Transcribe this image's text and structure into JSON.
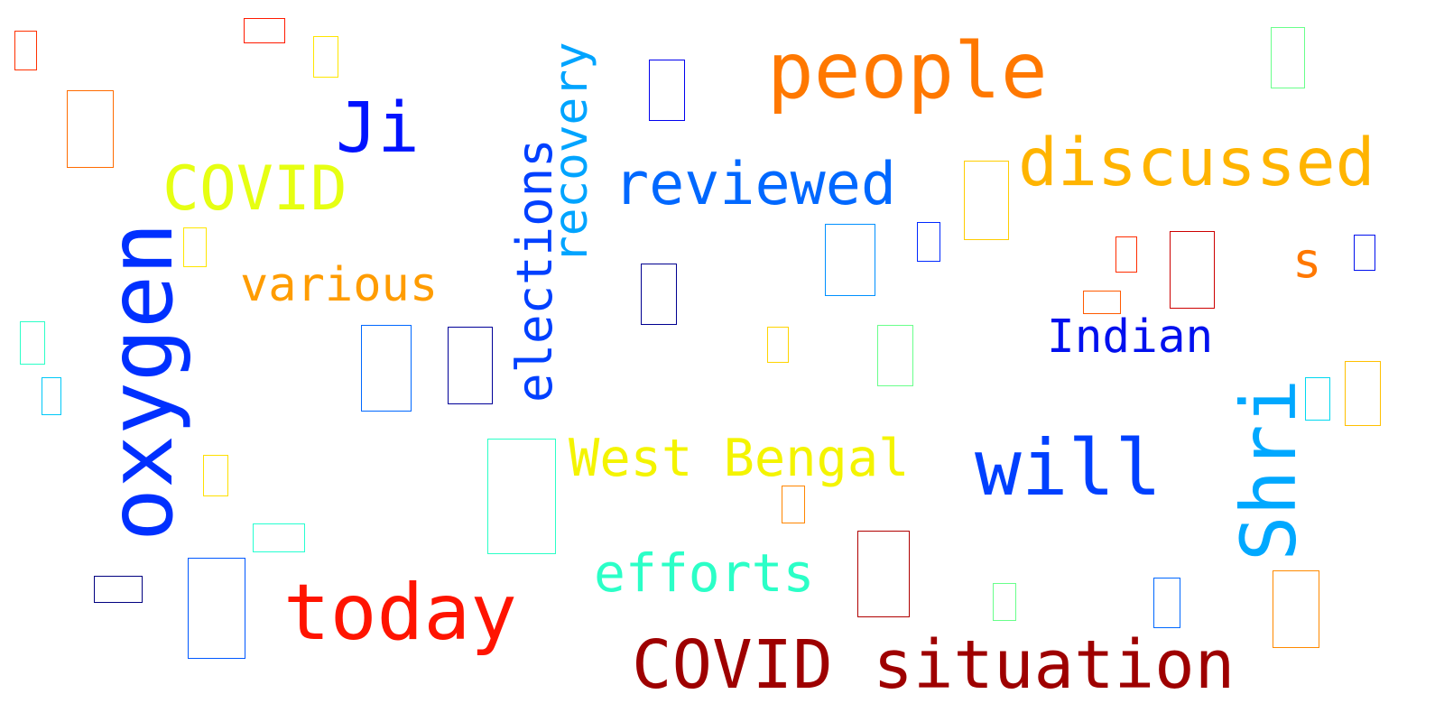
{
  "words": [
    {
      "text": "people",
      "color": "#ff7800"
    },
    {
      "text": "discussed",
      "color": "#ffb400"
    },
    {
      "text": "Ji",
      "color": "#0012ff"
    },
    {
      "text": "COVID",
      "color": "#e6ff12"
    },
    {
      "text": "reviewed",
      "color": "#0068ff"
    },
    {
      "text": "recovery",
      "color": "#00a4ff"
    },
    {
      "text": "elections",
      "color": "#0040ff"
    },
    {
      "text": "oxygen",
      "color": "#0030ff"
    },
    {
      "text": "various",
      "color": "#ff9c00"
    },
    {
      "text": "s",
      "color": "#ff7800"
    },
    {
      "text": "Indian",
      "color": "#0010ee"
    },
    {
      "text": "Shri",
      "color": "#00a8ff"
    },
    {
      "text": "West Bengal",
      "color": "#f4f400"
    },
    {
      "text": "will",
      "color": "#0040ff"
    },
    {
      "text": "efforts",
      "color": "#2bffc7"
    },
    {
      "text": "today",
      "color": "#ff1400"
    },
    {
      "text": "COVID situation",
      "color": "#9e0000"
    }
  ],
  "glyph_boxes": [
    {
      "color": "#ff3000"
    },
    {
      "color": "#ff1a00"
    },
    {
      "color": "#ffe600"
    },
    {
      "color": "#ff6c00"
    },
    {
      "color": "#0000ee"
    },
    {
      "color": "#69ff8b"
    },
    {
      "color": "#ffcd00"
    },
    {
      "color": "#ffe600"
    },
    {
      "color": "#0090ff"
    },
    {
      "color": "#0028ff"
    },
    {
      "color": "#000090"
    },
    {
      "color": "#ff2d00"
    },
    {
      "color": "#cd0000"
    },
    {
      "color": "#0010ee"
    },
    {
      "color": "#ff5a00"
    },
    {
      "color": "#2bffc7"
    },
    {
      "color": "#0068ff"
    },
    {
      "color": "#000098"
    },
    {
      "color": "#ffd400"
    },
    {
      "color": "#69ff8b"
    },
    {
      "color": "#00c8f8"
    },
    {
      "color": "#00d8f0"
    },
    {
      "color": "#ffc000"
    },
    {
      "color": "#2bffc7"
    },
    {
      "color": "#ffe000"
    },
    {
      "color": "#ff8600"
    },
    {
      "color": "#26ffd1"
    },
    {
      "color": "#000080"
    },
    {
      "color": "#0058ff"
    },
    {
      "color": "#b00000"
    },
    {
      "color": "#69ff8b"
    },
    {
      "color": "#0068ff"
    },
    {
      "color": "#ff8a00"
    }
  ]
}
